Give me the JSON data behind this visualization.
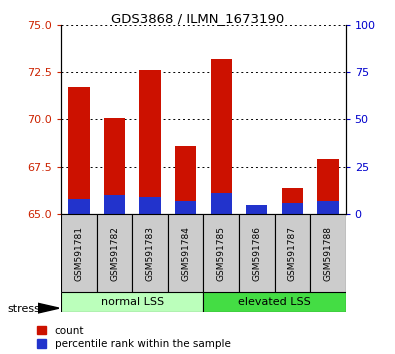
{
  "title": "GDS3868 / ILMN_1673190",
  "samples": [
    "GSM591781",
    "GSM591782",
    "GSM591783",
    "GSM591784",
    "GSM591785",
    "GSM591786",
    "GSM591787",
    "GSM591788"
  ],
  "red_values": [
    71.7,
    70.1,
    72.6,
    68.6,
    73.2,
    65.2,
    66.4,
    67.9
  ],
  "blue_pct": [
    8,
    10,
    9,
    7,
    11,
    5,
    6,
    7
  ],
  "ylim_left": [
    65,
    75
  ],
  "yticks_left": [
    65,
    67.5,
    70,
    72.5,
    75
  ],
  "yticks_right": [
    0,
    25,
    50,
    75,
    100
  ],
  "base": 65,
  "legend_red": "count",
  "legend_blue": "percentile rank within the sample",
  "bar_color_red": "#cc1100",
  "bar_color_blue": "#2233cc",
  "left_tick_color": "#cc2200",
  "right_tick_color": "#0000cc",
  "normal_color": "#bbffbb",
  "elevated_color": "#44dd44",
  "sample_box_color": "#cccccc",
  "stress_label": "stress"
}
